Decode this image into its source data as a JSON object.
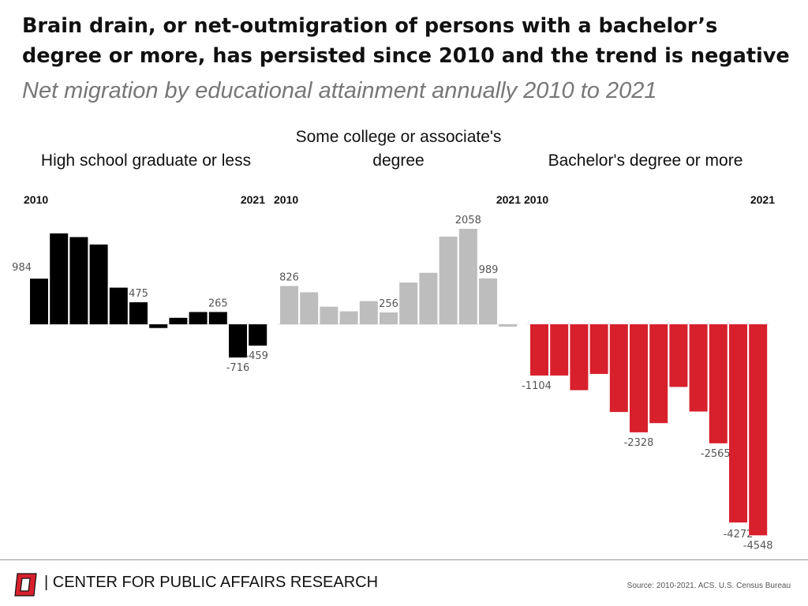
{
  "title": "Brain drain, or net-outmigration of persons with a bachelor’s degree or more, has persisted since 2010 and the trend is negative",
  "subtitle": "Net migration by educational attainment annually 2010 to 2021",
  "footer": {
    "brand": "| CENTER FOR PUBLIC AFFAIRS RESEARCH",
    "source": "Source: 2010-2021. ACS. U.S. Census Bureau"
  },
  "colors": {
    "high_school": "#000000",
    "some_college": "#bdbdbd",
    "bachelors": "#d7202c",
    "logo": "#d7202c"
  },
  "chart_data": [
    {
      "type": "bar",
      "title": "High school graduate or less",
      "x_start_label": "2010",
      "x_end_label": "2021",
      "categories": [
        "2010",
        "2011",
        "2012",
        "2013",
        "2014",
        "2015",
        "2016",
        "2017",
        "2018",
        "2019",
        "2020",
        "2021"
      ],
      "values": [
        984,
        1960,
        1880,
        1720,
        790,
        475,
        -80,
        140,
        265,
        265,
        -716,
        -459
      ],
      "data_labels": {
        "0": "984",
        "5": "475",
        "9": "265",
        "10": "-716",
        "11": "-459"
      },
      "color": "#000000"
    },
    {
      "type": "bar",
      "title": "Some college or associate's degree",
      "x_start_label": "2010",
      "x_end_label": "2021",
      "categories": [
        "2010",
        "2011",
        "2012",
        "2013",
        "2014",
        "2015",
        "2016",
        "2017",
        "2018",
        "2019",
        "2020",
        "2021"
      ],
      "values": [
        826,
        690,
        380,
        280,
        500,
        256,
        900,
        1110,
        1890,
        2058,
        989,
        -50
      ],
      "data_labels": {
        "0": "826",
        "5": "256",
        "9": "2058",
        "10": "989"
      },
      "color": "#bdbdbd"
    },
    {
      "type": "bar",
      "title": "Bachelor's degree or more",
      "x_start_label": "2010",
      "x_end_label": "2021",
      "categories": [
        "2010",
        "2011",
        "2012",
        "2013",
        "2014",
        "2015",
        "2016",
        "2017",
        "2018",
        "2019",
        "2020",
        "2021"
      ],
      "values": [
        -1104,
        -1104,
        -1420,
        -1070,
        -1890,
        -2328,
        -2130,
        -1350,
        -1880,
        -2565,
        -4272,
        -4548
      ],
      "data_labels": {
        "0": "-1104",
        "5": "-2328",
        "9": "-2565",
        "10": "-4272",
        "11": "-4548"
      },
      "color": "#d7202c"
    }
  ]
}
